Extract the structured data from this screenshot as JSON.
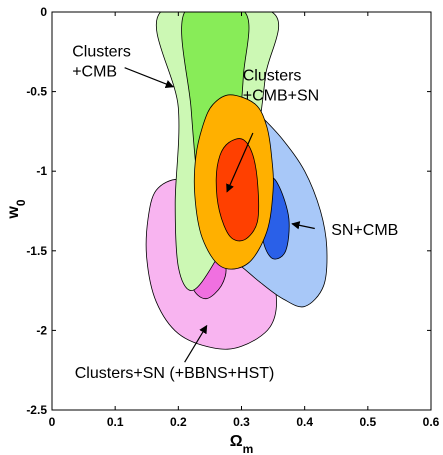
{
  "chart_data": {
    "type": "contour",
    "xlabel": "Ω",
    "xlabel_sub": "m",
    "ylabel": "w",
    "ylabel_sub": "0",
    "xlim": [
      0,
      0.6
    ],
    "ylim": [
      -2.5,
      0
    ],
    "xticks": [
      0,
      0.1,
      0.2,
      0.3,
      0.4,
      0.5,
      0.6
    ],
    "xtick_labels": [
      "0",
      "0.1",
      "0.2",
      "0.3",
      "0.4",
      "0.5",
      "0.6"
    ],
    "yticks": [
      0,
      -0.5,
      -1,
      -1.5,
      -2,
      -2.5
    ],
    "ytick_labels": [
      "0",
      "-0.5",
      "-1",
      "-1.5",
      "-2",
      "-2.5"
    ],
    "grid": false,
    "regions": [
      {
        "name": "Clusters+SN (+BBNS+HST)",
        "contours": [
          {
            "level": "outer",
            "color": "#f8b4f0",
            "points": [
              [
                0.165,
                -1.12
              ],
              [
                0.2,
                -1.05
              ],
              [
                0.24,
                -1.12
              ],
              [
                0.29,
                -1.3
              ],
              [
                0.335,
                -1.52
              ],
              [
                0.355,
                -1.78
              ],
              [
                0.345,
                -1.98
              ],
              [
                0.3,
                -2.1
              ],
              [
                0.255,
                -2.11
              ],
              [
                0.2,
                -2.02
              ],
              [
                0.165,
                -1.82
              ],
              [
                0.15,
                -1.55
              ],
              [
                0.152,
                -1.3
              ]
            ]
          },
          {
            "level": "inner",
            "color": "#f070e0",
            "points": [
              [
                0.23,
                -1.52
              ],
              [
                0.255,
                -1.5
              ],
              [
                0.275,
                -1.6
              ],
              [
                0.268,
                -1.72
              ],
              [
                0.245,
                -1.8
              ],
              [
                0.225,
                -1.75
              ],
              [
                0.22,
                -1.62
              ]
            ]
          }
        ]
      },
      {
        "name": "SN+CMB",
        "contours": [
          {
            "level": "outer",
            "color": "#a8c8f8",
            "points": [
              [
                0.305,
                -0.55
              ],
              [
                0.33,
                -0.65
              ],
              [
                0.365,
                -0.8
              ],
              [
                0.4,
                -1.0
              ],
              [
                0.425,
                -1.25
              ],
              [
                0.435,
                -1.48
              ],
              [
                0.43,
                -1.72
              ],
              [
                0.4,
                -1.85
              ],
              [
                0.365,
                -1.8
              ],
              [
                0.33,
                -1.7
              ],
              [
                0.3,
                -1.6
              ],
              [
                0.28,
                -1.55
              ],
              [
                0.278,
                -1.4
              ],
              [
                0.285,
                -1.0
              ],
              [
                0.292,
                -0.72
              ]
            ]
          },
          {
            "level": "inner",
            "color": "#2a60e8",
            "points": [
              [
                0.345,
                -1.05
              ],
              [
                0.36,
                -1.1
              ],
              [
                0.375,
                -1.3
              ],
              [
                0.37,
                -1.5
              ],
              [
                0.35,
                -1.55
              ],
              [
                0.335,
                -1.45
              ],
              [
                0.33,
                -1.25
              ]
            ]
          }
        ]
      },
      {
        "name": "Clusters+CMB",
        "contours": [
          {
            "level": "outer",
            "color": "#ccf8b4",
            "points": [
              [
                0.172,
                0
              ],
              [
                0.2,
                -0.6
              ],
              [
                0.195,
                -1.2
              ],
              [
                0.2,
                -1.6
              ],
              [
                0.22,
                -1.75
              ],
              [
                0.25,
                -1.62
              ],
              [
                0.29,
                -1.3
              ],
              [
                0.322,
                -0.85
              ],
              [
                0.338,
                -0.4
              ],
              [
                0.348,
                0
              ]
            ]
          },
          {
            "level": "inner",
            "color": "#88ec58",
            "points": [
              [
                0.21,
                0
              ],
              [
                0.22,
                -0.6
              ],
              [
                0.232,
                -1.1
              ],
              [
                0.252,
                -1.35
              ],
              [
                0.27,
                -1.2
              ],
              [
                0.292,
                -0.85
              ],
              [
                0.303,
                -0.4
              ],
              [
                0.305,
                0
              ]
            ]
          }
        ]
      },
      {
        "name": "Clusters+CMB+SN",
        "contours": [
          {
            "level": "outer",
            "color": "#ffb000",
            "points": [
              [
                0.255,
                -0.58
              ],
              [
                0.282,
                -0.52
              ],
              [
                0.322,
                -0.58
              ],
              [
                0.34,
                -0.72
              ],
              [
                0.348,
                -0.92
              ],
              [
                0.35,
                -1.12
              ],
              [
                0.34,
                -1.38
              ],
              [
                0.31,
                -1.58
              ],
              [
                0.268,
                -1.6
              ],
              [
                0.238,
                -1.42
              ],
              [
                0.226,
                -1.15
              ],
              [
                0.228,
                -0.9
              ],
              [
                0.24,
                -0.7
              ]
            ]
          },
          {
            "level": "inner",
            "color": "#ff4000",
            "points": [
              [
                0.28,
                -0.82
              ],
              [
                0.302,
                -0.8
              ],
              [
                0.318,
                -0.9
              ],
              [
                0.326,
                -1.1
              ],
              [
                0.325,
                -1.32
              ],
              [
                0.305,
                -1.43
              ],
              [
                0.282,
                -1.41
              ],
              [
                0.265,
                -1.25
              ],
              [
                0.26,
                -1.05
              ],
              [
                0.266,
                -0.9
              ]
            ]
          }
        ]
      }
    ],
    "annotations": [
      {
        "lines": [
          "Clusters",
          "+CMB"
        ],
        "text_at": [
          0.032,
          -0.28
        ],
        "arrow_from": [
          0.115,
          -0.35
        ],
        "arrow_to": [
          0.192,
          -0.47
        ]
      },
      {
        "lines": [
          "Clusters",
          "+CMB+SN"
        ],
        "text_at": [
          0.302,
          -0.43
        ],
        "arrow_from": [
          0.318,
          -0.76
        ],
        "arrow_to": [
          0.277,
          -1.13
        ]
      },
      {
        "lines": [
          "SN+CMB"
        ],
        "text_at": [
          0.442,
          -1.4
        ],
        "arrow_from": [
          0.416,
          -1.36
        ],
        "arrow_to": [
          0.38,
          -1.33
        ]
      },
      {
        "lines": [
          "Clusters+SN (+BBNS+HST)"
        ],
        "text_at": [
          0.036,
          -2.3
        ],
        "arrow_from": [
          0.21,
          -2.2
        ],
        "arrow_to": [
          0.245,
          -1.97
        ]
      }
    ]
  }
}
